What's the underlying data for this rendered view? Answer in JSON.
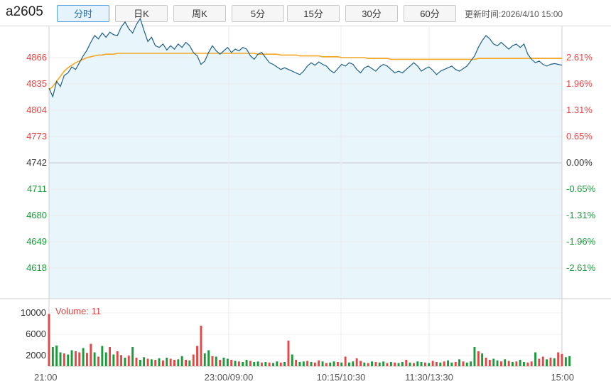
{
  "header": {
    "symbol": "a2605",
    "tabs": [
      "分时",
      "日K",
      "周K",
      "5分",
      "15分",
      "30分",
      "60分"
    ],
    "active_tab": "分时",
    "updated_label": "更新时间:",
    "updated_value": "2026/4/10 15:00"
  },
  "colors": {
    "up": "#e84545",
    "down": "#1a9a3a",
    "flat": "#333333",
    "price_line": "#1f5f85",
    "avg_line": "#f5a623",
    "fill": "#e8f6fc",
    "volume_label": "#e84545"
  },
  "chart_data": {
    "type": "line",
    "title": "",
    "base_price": 4742,
    "price_axis": [
      4866,
      4835,
      4804,
      4773,
      4742,
      4711,
      4680,
      4649,
      4618
    ],
    "pct_axis": [
      "2.61%",
      "1.96%",
      "1.31%",
      "0.65%",
      "0.00%",
      "-0.65%",
      "-1.31%",
      "-1.96%",
      "-2.61%"
    ],
    "time_axis": [
      "21:00",
      "23:00/09:00",
      "10:15/10:30",
      "11:30/13:30",
      "15:00"
    ],
    "ylim": [
      4587,
      4897
    ],
    "series": [
      {
        "name": "price",
        "values": [
          4830,
          4820,
          4838,
          4832,
          4845,
          4848,
          4855,
          4852,
          4860,
          4868,
          4875,
          4884,
          4892,
          4888,
          4895,
          4890,
          4896,
          4893,
          4892,
          4902,
          4908,
          4900,
          4895,
          4905,
          4912,
          4898,
          4885,
          4890,
          4880,
          4878,
          4882,
          4875,
          4880,
          4876,
          4882,
          4878,
          4884,
          4880,
          4872,
          4868,
          4858,
          4862,
          4872,
          4880,
          4874,
          4870,
          4874,
          4878,
          4872,
          4876,
          4874,
          4878,
          4876,
          4868,
          4864,
          4870,
          4872,
          4866,
          4860,
          4858,
          4855,
          4852,
          4854,
          4852,
          4850,
          4848,
          4846,
          4850,
          4856,
          4860,
          4857,
          4861,
          4858,
          4856,
          4851,
          4848,
          4853,
          4858,
          4856,
          4860,
          4858,
          4852,
          4848,
          4854,
          4856,
          4853,
          4850,
          4855,
          4858,
          4856,
          4852,
          4848,
          4850,
          4848,
          4852,
          4856,
          4860,
          4856,
          4850,
          4853,
          4855,
          4851,
          4846,
          4850,
          4852,
          4854,
          4856,
          4852,
          4850,
          4853,
          4856,
          4862,
          4868,
          4878,
          4886,
          4892,
          4888,
          4882,
          4880,
          4884,
          4880,
          4876,
          4880,
          4882,
          4878,
          4882,
          4870,
          4864,
          4860,
          4862,
          4858,
          4856,
          4858,
          4859,
          4858,
          4857
        ],
        "note_times": ""
      },
      {
        "name": "avg",
        "values": [
          4828,
          4832,
          4838,
          4844,
          4850,
          4854,
          4857,
          4860,
          4862,
          4864,
          4866,
          4867,
          4868,
          4869,
          4869,
          4870,
          4870,
          4870,
          4871,
          4871,
          4871,
          4871,
          4871,
          4871,
          4871,
          4871,
          4871,
          4871,
          4871,
          4871,
          4871,
          4871,
          4871,
          4871,
          4871,
          4871,
          4871,
          4871,
          4871,
          4871,
          4871,
          4871,
          4871,
          4871,
          4871,
          4871,
          4871,
          4871,
          4871,
          4871,
          4871,
          4871,
          4871,
          4871,
          4871,
          4870,
          4870,
          4870,
          4870,
          4870,
          4870,
          4869,
          4869,
          4869,
          4869,
          4869,
          4868,
          4868,
          4868,
          4868,
          4868,
          4868,
          4867,
          4867,
          4867,
          4867,
          4867,
          4866,
          4866,
          4866,
          4866,
          4866,
          4866,
          4866,
          4865,
          4865,
          4865,
          4865,
          4865,
          4865,
          4864,
          4864,
          4864,
          4864,
          4864,
          4864,
          4864,
          4864,
          4864,
          4864,
          4864,
          4864,
          4864,
          4864,
          4864,
          4864,
          4864,
          4864,
          4864,
          4864,
          4864,
          4864,
          4864,
          4865,
          4865,
          4865,
          4865,
          4865,
          4865,
          4865,
          4865,
          4865,
          4865,
          4865,
          4865,
          4865,
          4865,
          4865,
          4865,
          4865,
          4865,
          4865,
          4865,
          4865,
          4865,
          4865
        ]
      }
    ],
    "volume": {
      "label": "Volume: 11",
      "axis": [
        10000,
        6000,
        2000
      ],
      "ylim": [
        0,
        12000
      ],
      "values": [
        9800,
        3600,
        3900,
        2600,
        2400,
        2200,
        3000,
        2800,
        2600,
        3400,
        2500,
        4200,
        2600,
        1800,
        3800,
        2600,
        3600,
        2200,
        2800,
        2100,
        1600,
        2000,
        3600,
        1600,
        1200,
        1700,
        1400,
        1300,
        1200,
        1500,
        1100,
        1600,
        1400,
        1200,
        1300,
        1900,
        1200,
        1100,
        2200,
        3800,
        7600,
        2400,
        3000,
        1900,
        1800,
        1200,
        1600,
        1400,
        1200,
        1000,
        900,
        800,
        1200,
        1000,
        800,
        900,
        700,
        800,
        700,
        600,
        900,
        700,
        800,
        4800,
        2200,
        1200,
        800,
        900,
        1000,
        800,
        700,
        1100,
        900,
        600,
        700,
        900,
        800,
        700,
        1800,
        700,
        900,
        1500,
        1000,
        700,
        600,
        900,
        800,
        700,
        900,
        600,
        800,
        700,
        600,
        800,
        1200,
        700,
        600,
        900,
        800,
        700,
        600,
        1000,
        800,
        700,
        900,
        1100,
        700,
        800,
        1300,
        900,
        700,
        900,
        3600,
        2800,
        2400,
        1600,
        1200,
        1400,
        1100,
        900,
        1300,
        1000,
        800,
        900,
        1200,
        800,
        700,
        900,
        2600,
        1400,
        1800,
        1300,
        1600,
        1500,
        2600,
        2300,
        1700,
        1900
      ],
      "up": [
        1,
        0,
        0,
        0,
        1,
        0,
        0,
        1,
        1,
        0,
        1,
        1,
        0,
        1,
        0,
        0,
        1,
        0,
        1,
        1,
        0,
        1,
        0,
        1,
        0,
        0,
        1,
        0,
        1,
        0,
        1,
        0,
        1,
        1,
        0,
        0,
        1,
        0,
        1,
        1,
        1,
        0,
        0,
        1,
        0,
        1,
        0,
        0,
        1,
        0,
        1,
        0,
        0,
        1,
        0,
        0,
        1,
        0,
        1,
        0,
        0,
        1,
        0,
        1,
        0,
        1,
        0,
        0,
        1,
        0,
        1,
        1,
        0,
        1,
        0,
        0,
        1,
        0,
        1,
        0,
        0,
        1,
        1,
        0,
        1,
        0,
        1,
        0,
        0,
        1,
        0,
        1,
        0,
        0,
        1,
        0,
        1,
        0,
        0,
        1,
        0,
        1,
        1,
        0,
        1,
        0,
        0,
        1,
        0,
        1,
        0,
        0,
        0,
        1,
        0,
        1,
        1,
        0,
        0,
        1,
        0,
        1,
        0,
        1,
        0,
        0,
        1,
        1,
        0,
        1,
        1,
        0,
        1,
        0,
        1,
        1
      ]
    }
  }
}
